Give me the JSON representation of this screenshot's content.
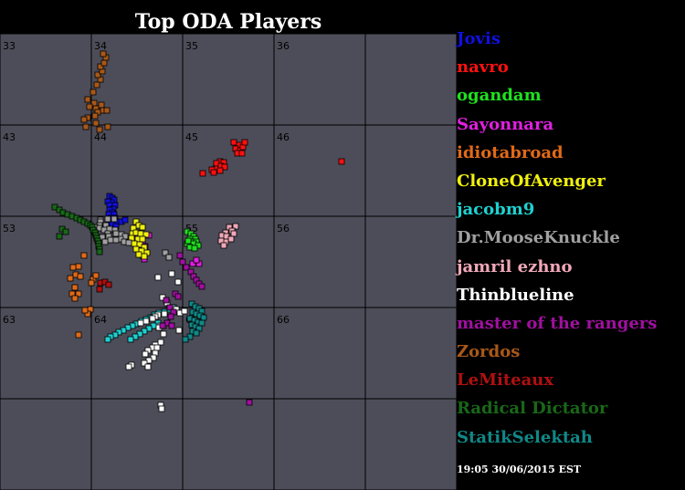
{
  "chart_data": {
    "type": "scatter",
    "title": "Top ODA Players",
    "xlim": [
      300,
      800
    ],
    "ylim": [
      300,
      800
    ],
    "grid_colors": {
      "background": "#4d4d59",
      "lines": "#000000"
    },
    "sector_labels": [
      {
        "label": "33",
        "x": 300,
        "y": 300
      },
      {
        "label": "34",
        "x": 400,
        "y": 300
      },
      {
        "label": "35",
        "x": 500,
        "y": 300
      },
      {
        "label": "36",
        "x": 600,
        "y": 300
      },
      {
        "label": "43",
        "x": 300,
        "y": 400
      },
      {
        "label": "44",
        "x": 400,
        "y": 400
      },
      {
        "label": "45",
        "x": 500,
        "y": 400
      },
      {
        "label": "46",
        "x": 600,
        "y": 400
      },
      {
        "label": "53",
        "x": 300,
        "y": 500
      },
      {
        "label": "54",
        "x": 400,
        "y": 500
      },
      {
        "label": "55",
        "x": 500,
        "y": 500
      },
      {
        "label": "56",
        "x": 600,
        "y": 500
      },
      {
        "label": "63",
        "x": 300,
        "y": 600
      },
      {
        "label": "64",
        "x": 400,
        "y": 600
      },
      {
        "label": "65",
        "x": 500,
        "y": 600
      },
      {
        "label": "66",
        "x": 600,
        "y": 600
      }
    ],
    "series": [
      {
        "name": "Jovis",
        "color": "#1010e0",
        "points": [
          [
            420,
            478
          ],
          [
            423,
            480
          ],
          [
            425,
            482
          ],
          [
            422,
            485
          ],
          [
            418,
            484
          ],
          [
            420,
            488
          ],
          [
            426,
            488
          ],
          [
            424,
            492
          ],
          [
            420,
            493
          ],
          [
            423,
            496
          ],
          [
            419,
            498
          ],
          [
            425,
            498
          ],
          [
            421,
            502
          ],
          [
            426,
            502
          ],
          [
            418,
            506
          ],
          [
            429,
            506
          ],
          [
            433,
            506
          ],
          [
            437,
            504
          ],
          [
            423,
            509
          ],
          [
            427,
            511
          ]
        ]
      },
      {
        "name": "navro",
        "color": "#ff1010",
        "points": [
          [
            556,
            419
          ],
          [
            562,
            422
          ],
          [
            558,
            426
          ],
          [
            563,
            428
          ],
          [
            566,
            424
          ],
          [
            568,
            419
          ],
          [
            560,
            431
          ],
          [
            565,
            431
          ],
          [
            541,
            440
          ],
          [
            545,
            441
          ],
          [
            537,
            442
          ],
          [
            542,
            445
          ],
          [
            536,
            448
          ],
          [
            546,
            446
          ],
          [
            532,
            449
          ],
          [
            541,
            450
          ],
          [
            522,
            453
          ],
          [
            534,
            452
          ],
          [
            674,
            440
          ]
        ]
      },
      {
        "name": "ogandam",
        "color": "#20e020",
        "points": [
          [
            505,
            517
          ],
          [
            509,
            519
          ],
          [
            512,
            522
          ],
          [
            508,
            525
          ],
          [
            514,
            525
          ],
          [
            510,
            528
          ],
          [
            515,
            528
          ],
          [
            512,
            530
          ],
          [
            505,
            530
          ],
          [
            517,
            532
          ],
          [
            508,
            534
          ],
          [
            513,
            535
          ],
          [
            506,
            527
          ]
        ]
      },
      {
        "name": "Sayonnara",
        "color": "#e020e0",
        "points": [
          [
            448,
            523
          ],
          [
            453,
            527
          ],
          [
            456,
            530
          ],
          [
            455,
            533
          ],
          [
            459,
            533
          ],
          [
            453,
            537
          ],
          [
            458,
            539
          ],
          [
            456,
            543
          ],
          [
            458,
            547
          ],
          [
            511,
            552
          ],
          [
            518,
            552
          ],
          [
            515,
            548
          ],
          [
            463,
            521
          ]
        ]
      },
      {
        "name": "idiotabroad",
        "color": "#e06a18",
        "points": [
          [
            392,
            543
          ],
          [
            386,
            555
          ],
          [
            380,
            556
          ],
          [
            383,
            564
          ],
          [
            388,
            566
          ],
          [
            377,
            568
          ],
          [
            402,
            569
          ],
          [
            405,
            565
          ],
          [
            400,
            573
          ],
          [
            382,
            578
          ],
          [
            379,
            585
          ],
          [
            386,
            585
          ],
          [
            382,
            590
          ],
          [
            399,
            602
          ],
          [
            396,
            607
          ],
          [
            393,
            603
          ],
          [
            386,
            630
          ]
        ]
      },
      {
        "name": "CloneOfAvenger",
        "color": "#f0f010",
        "points": [
          [
            449,
            506
          ],
          [
            452,
            510
          ],
          [
            446,
            513
          ],
          [
            456,
            512
          ],
          [
            445,
            519
          ],
          [
            449,
            518
          ],
          [
            454,
            519
          ],
          [
            460,
            520
          ],
          [
            444,
            524
          ],
          [
            451,
            525
          ],
          [
            456,
            525
          ],
          [
            447,
            530
          ],
          [
            453,
            531
          ],
          [
            458,
            534
          ],
          [
            449,
            536
          ],
          [
            455,
            538
          ],
          [
            461,
            540
          ],
          [
            452,
            542
          ],
          [
            458,
            544
          ]
        ]
      },
      {
        "name": "jacobm9",
        "color": "#20d0d0",
        "points": [
          [
            490,
            600
          ],
          [
            485,
            602
          ],
          [
            480,
            605
          ],
          [
            474,
            606
          ],
          [
            469,
            608
          ],
          [
            465,
            611
          ],
          [
            460,
            613
          ],
          [
            455,
            615
          ],
          [
            449,
            618
          ],
          [
            445,
            620
          ],
          [
            440,
            622
          ],
          [
            435,
            625
          ],
          [
            430,
            627
          ],
          [
            426,
            630
          ],
          [
            421,
            632
          ],
          [
            418,
            635
          ],
          [
            473,
            617
          ],
          [
            468,
            620
          ],
          [
            463,
            623
          ],
          [
            458,
            626
          ],
          [
            453,
            629
          ],
          [
            448,
            632
          ],
          [
            443,
            635
          ]
        ]
      },
      {
        "name": "Dr.MooseKnuckle",
        "color": "#a0a0a0",
        "points": [
          [
            410,
            504
          ],
          [
            418,
            503
          ],
          [
            425,
            503
          ],
          [
            410,
            506
          ],
          [
            409,
            510
          ],
          [
            416,
            510
          ],
          [
            404,
            512
          ],
          [
            409,
            513
          ],
          [
            414,
            515
          ],
          [
            420,
            514
          ],
          [
            426,
            515
          ],
          [
            418,
            519
          ],
          [
            427,
            519
          ],
          [
            433,
            520
          ],
          [
            419,
            522
          ],
          [
            437,
            522
          ],
          [
            406,
            524
          ],
          [
            412,
            523
          ],
          [
            432,
            525
          ],
          [
            421,
            526
          ],
          [
            427,
            526
          ],
          [
            415,
            528
          ],
          [
            436,
            528
          ],
          [
            441,
            529
          ],
          [
            481,
            540
          ],
          [
            485,
            545
          ]
        ]
      },
      {
        "name": "jamril ezhno",
        "color": "#f0a8b8",
        "points": [
          [
            558,
            511
          ],
          [
            551,
            512
          ],
          [
            554,
            516
          ],
          [
            547,
            518
          ],
          [
            543,
            521
          ],
          [
            556,
            519
          ],
          [
            548,
            522
          ],
          [
            553,
            525
          ],
          [
            547,
            528
          ],
          [
            542,
            527
          ],
          [
            545,
            532
          ]
        ]
      },
      {
        "name": "Thinblueline",
        "color": "#ffffff",
        "points": [
          [
            473,
            567
          ],
          [
            488,
            563
          ],
          [
            495,
            572
          ],
          [
            478,
            589
          ],
          [
            483,
            595
          ],
          [
            488,
            600
          ],
          [
            493,
            602
          ],
          [
            497,
            606
          ],
          [
            502,
            604
          ],
          [
            480,
            607
          ],
          [
            473,
            608
          ],
          [
            470,
            610
          ],
          [
            467,
            612
          ],
          [
            460,
            615
          ],
          [
            454,
            617
          ],
          [
            476,
            620
          ],
          [
            496,
            625
          ],
          [
            479,
            620
          ],
          [
            474,
            622
          ],
          [
            479,
            629
          ],
          [
            476,
            638
          ],
          [
            470,
            641
          ],
          [
            467,
            644
          ],
          [
            472,
            644
          ],
          [
            462,
            647
          ],
          [
            470,
            650
          ],
          [
            459,
            651
          ],
          [
            468,
            655
          ],
          [
            463,
            658
          ],
          [
            458,
            661
          ],
          [
            462,
            665
          ],
          [
            444,
            663
          ],
          [
            441,
            665
          ],
          [
            476,
            707
          ],
          [
            477,
            711
          ]
        ]
      },
      {
        "name": "master of the rangers",
        "color": "#a010a0",
        "points": [
          [
            497,
            543
          ],
          [
            500,
            550
          ],
          [
            504,
            556
          ],
          [
            509,
            561
          ],
          [
            512,
            566
          ],
          [
            515,
            570
          ],
          [
            518,
            574
          ],
          [
            521,
            577
          ],
          [
            492,
            585
          ],
          [
            495,
            588
          ],
          [
            482,
            592
          ],
          [
            486,
            600
          ],
          [
            490,
            605
          ],
          [
            487,
            610
          ],
          [
            483,
            617
          ],
          [
            478,
            620
          ],
          [
            488,
            620
          ],
          [
            573,
            704
          ]
        ]
      },
      {
        "name": "Zordos",
        "color": "#a85818",
        "points": [
          [
            396,
            372
          ],
          [
            402,
            364
          ],
          [
            406,
            356
          ],
          [
            410,
            350
          ],
          [
            407,
            345
          ],
          [
            412,
            341
          ],
          [
            410,
            336
          ],
          [
            414,
            332
          ],
          [
            416,
            326
          ],
          [
            413,
            322
          ],
          [
            403,
            376
          ],
          [
            411,
            378
          ],
          [
            398,
            380
          ],
          [
            405,
            382
          ],
          [
            413,
            384
          ],
          [
            417,
            384
          ],
          [
            407,
            386
          ],
          [
            404,
            390
          ],
          [
            396,
            392
          ],
          [
            392,
            394
          ],
          [
            405,
            398
          ],
          [
            394,
            402
          ],
          [
            418,
            402
          ],
          [
            409,
            405
          ]
        ]
      },
      {
        "name": "LeMiteaux",
        "color": "#b01010",
        "points": [
          [
            410,
            573
          ],
          [
            409,
            580
          ],
          [
            415,
            572
          ],
          [
            419,
            575
          ]
        ]
      },
      {
        "name": "Radical Dictator",
        "color": "#186818",
        "points": [
          [
            360,
            490
          ],
          [
            365,
            493
          ],
          [
            369,
            496
          ],
          [
            374,
            498
          ],
          [
            379,
            500
          ],
          [
            384,
            502
          ],
          [
            388,
            504
          ],
          [
            392,
            506
          ],
          [
            396,
            508
          ],
          [
            399,
            510
          ],
          [
            401,
            512
          ],
          [
            402,
            515
          ],
          [
            404,
            518
          ],
          [
            405,
            521
          ],
          [
            406,
            524
          ],
          [
            407,
            527
          ],
          [
            408,
            530
          ],
          [
            408,
            533
          ],
          [
            409,
            536
          ],
          [
            409,
            539
          ],
          [
            368,
            514
          ],
          [
            372,
            517
          ],
          [
            365,
            522
          ]
        ]
      },
      {
        "name": "StatikSelektah",
        "color": "#108888",
        "points": [
          [
            510,
            596
          ],
          [
            514,
            599
          ],
          [
            518,
            601
          ],
          [
            521,
            604
          ],
          [
            511,
            605
          ],
          [
            515,
            607
          ],
          [
            519,
            609
          ],
          [
            523,
            611
          ],
          [
            508,
            612
          ],
          [
            513,
            614
          ],
          [
            517,
            616
          ],
          [
            521,
            617
          ],
          [
            510,
            619
          ],
          [
            514,
            621
          ],
          [
            518,
            623
          ],
          [
            511,
            626
          ],
          [
            515,
            628
          ],
          [
            508,
            632
          ],
          [
            503,
            635
          ]
        ]
      }
    ]
  },
  "timestamp": "19:05 30/06/2015 EST"
}
